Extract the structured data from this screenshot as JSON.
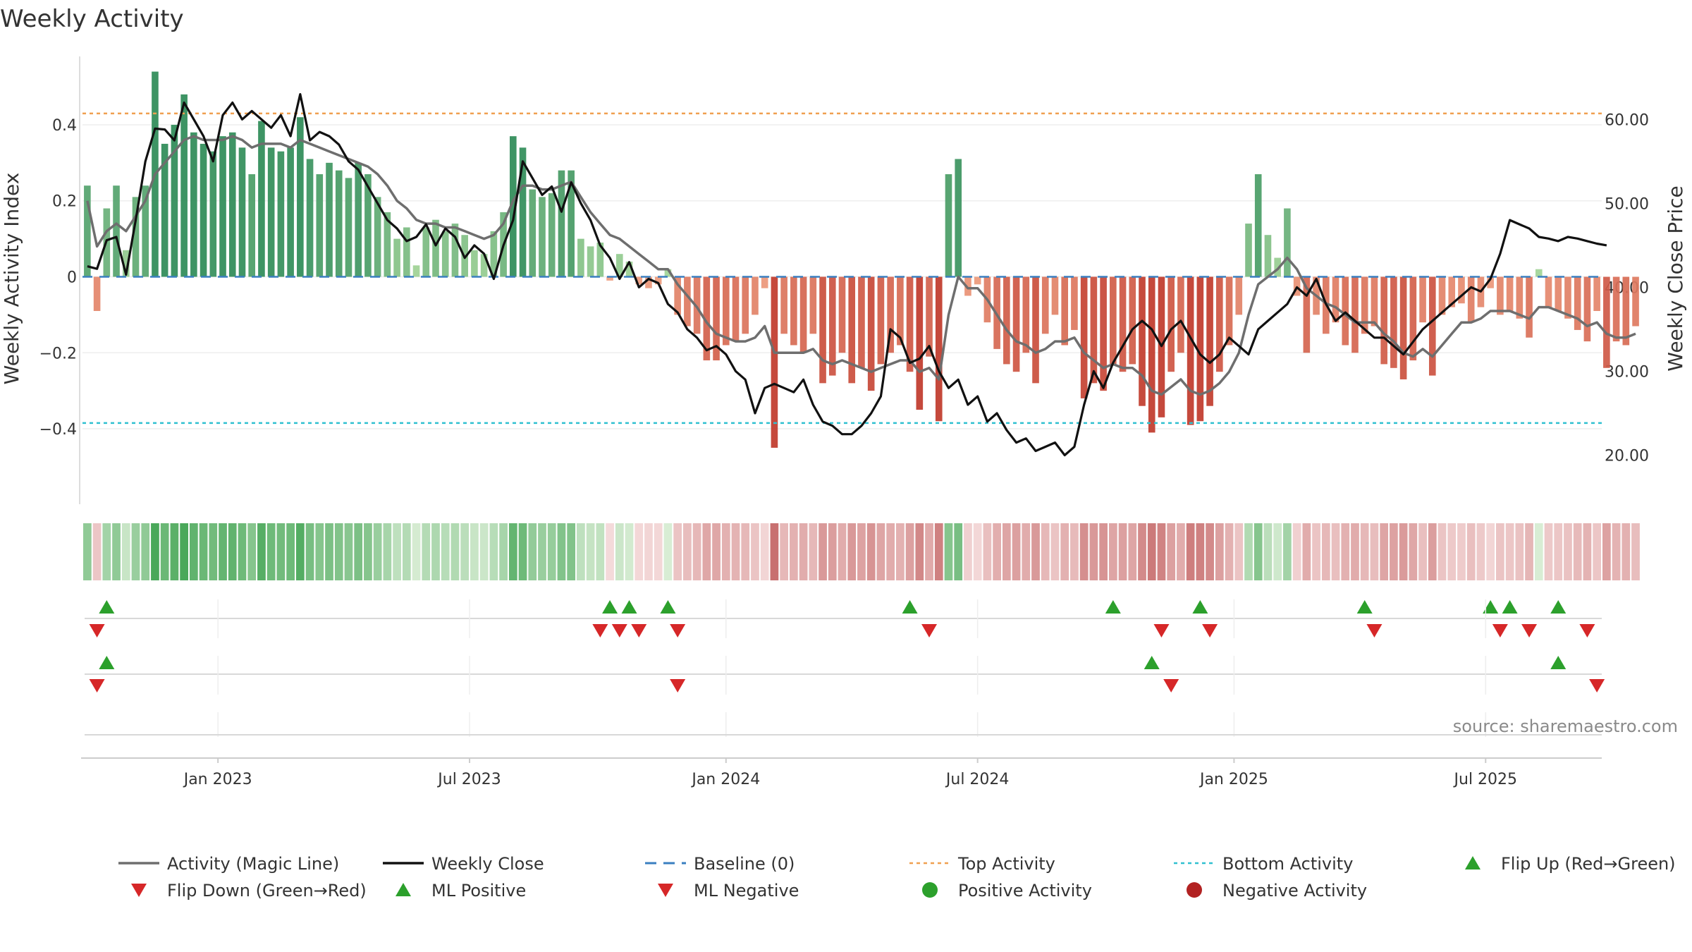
{
  "chart_data": {
    "type": "bar",
    "title": "Weekly Activity",
    "ylabel_left": "Weekly Activity Index",
    "ylabel_right": "Weekly Close Price",
    "source": "source: sharemaestro.com",
    "ylim_left": [
      -0.58,
      0.58
    ],
    "ylim_right": [
      15.0,
      67.5
    ],
    "yticks_left": [
      {
        "value": 0.4,
        "label": "0.4"
      },
      {
        "value": 0.2,
        "label": "0.2"
      },
      {
        "value": 0,
        "label": "0"
      },
      {
        "value": -0.2,
        "label": "−0.2"
      },
      {
        "value": -0.4,
        "label": "−0.4"
      }
    ],
    "yticks_right": [
      {
        "value": 60,
        "label": "60.00"
      },
      {
        "value": 50,
        "label": "50.00"
      },
      {
        "value": 40,
        "label": "40.00"
      },
      {
        "value": 30,
        "label": "30.00"
      },
      {
        "value": 20,
        "label": "20.00"
      }
    ],
    "x_range_weeks": [
      0,
      157
    ],
    "x_ticks": [
      {
        "week": 14,
        "label": "Jan 2023"
      },
      {
        "week": 40,
        "label": "Jul 2023"
      },
      {
        "week": 66.5,
        "label": "Jan 2024"
      },
      {
        "week": 92.5,
        "label": "Jul 2024"
      },
      {
        "week": 119,
        "label": "Jan 2025"
      },
      {
        "week": 145,
        "label": "Jul 2025"
      }
    ],
    "top_activity": 0.43,
    "bottom_activity": -0.385,
    "activity": [
      0.24,
      -0.09,
      0.18,
      0.24,
      0.07,
      0.21,
      0.24,
      0.54,
      0.35,
      0.4,
      0.48,
      0.38,
      0.35,
      0.33,
      0.37,
      0.38,
      0.34,
      0.27,
      0.41,
      0.34,
      0.33,
      0.34,
      0.42,
      0.31,
      0.27,
      0.3,
      0.28,
      0.26,
      0.3,
      0.27,
      0.21,
      0.17,
      0.1,
      0.13,
      0.03,
      0.13,
      0.15,
      0.12,
      0.14,
      0.11,
      0.07,
      0.06,
      0.12,
      0.17,
      0.37,
      0.34,
      0.23,
      0.21,
      0.22,
      0.28,
      0.28,
      0.1,
      0.08,
      0.09,
      -0.01,
      0.06,
      0.04,
      -0.02,
      -0.03,
      -0.02,
      0.02,
      -0.1,
      -0.13,
      -0.15,
      -0.22,
      -0.22,
      -0.18,
      -0.17,
      -0.15,
      -0.1,
      -0.03,
      -0.45,
      -0.15,
      -0.18,
      -0.2,
      -0.15,
      -0.28,
      -0.26,
      -0.2,
      -0.28,
      -0.24,
      -0.3,
      -0.23,
      -0.2,
      -0.18,
      -0.25,
      -0.35,
      -0.21,
      -0.38,
      0.27,
      0.31,
      -0.05,
      -0.02,
      -0.12,
      -0.19,
      -0.23,
      -0.25,
      -0.2,
      -0.28,
      -0.15,
      -0.1,
      -0.18,
      -0.14,
      -0.32,
      -0.28,
      -0.3,
      -0.23,
      -0.25,
      -0.23,
      -0.34,
      -0.41,
      -0.37,
      -0.25,
      -0.2,
      -0.39,
      -0.38,
      -0.34,
      -0.25,
      -0.18,
      -0.1,
      0.14,
      0.27,
      0.11,
      0.05,
      0.18,
      -0.05,
      -0.2,
      -0.1,
      -0.15,
      -0.12,
      -0.18,
      -0.2,
      -0.15,
      -0.13,
      -0.23,
      -0.24,
      -0.27,
      -0.22,
      -0.12,
      -0.26,
      -0.1,
      -0.08,
      -0.07,
      -0.12,
      -0.08,
      -0.03,
      -0.1,
      -0.09,
      -0.11,
      -0.16,
      0.02,
      -0.08,
      -0.09,
      -0.11,
      -0.14,
      -0.17,
      -0.09,
      -0.24,
      -0.17,
      -0.18,
      -0.13
    ],
    "magic_line": [
      0.2,
      0.08,
      0.12,
      0.14,
      0.12,
      0.16,
      0.2,
      0.27,
      0.3,
      0.33,
      0.36,
      0.37,
      0.36,
      0.36,
      0.36,
      0.37,
      0.36,
      0.34,
      0.35,
      0.35,
      0.35,
      0.34,
      0.36,
      0.35,
      0.34,
      0.33,
      0.32,
      0.31,
      0.3,
      0.29,
      0.27,
      0.24,
      0.2,
      0.18,
      0.15,
      0.14,
      0.14,
      0.13,
      0.13,
      0.12,
      0.11,
      0.1,
      0.11,
      0.14,
      0.2,
      0.24,
      0.24,
      0.23,
      0.23,
      0.24,
      0.25,
      0.21,
      0.17,
      0.14,
      0.11,
      0.1,
      0.08,
      0.06,
      0.04,
      0.02,
      0.02,
      -0.02,
      -0.05,
      -0.08,
      -0.12,
      -0.15,
      -0.16,
      -0.17,
      -0.17,
      -0.16,
      -0.13,
      -0.2,
      -0.2,
      -0.2,
      -0.2,
      -0.19,
      -0.22,
      -0.23,
      -0.22,
      -0.23,
      -0.24,
      -0.25,
      -0.24,
      -0.23,
      -0.22,
      -0.22,
      -0.25,
      -0.24,
      -0.27,
      -0.1,
      0.0,
      -0.03,
      -0.03,
      -0.06,
      -0.1,
      -0.14,
      -0.17,
      -0.18,
      -0.2,
      -0.19,
      -0.17,
      -0.17,
      -0.16,
      -0.2,
      -0.22,
      -0.24,
      -0.23,
      -0.24,
      -0.24,
      -0.26,
      -0.3,
      -0.31,
      -0.29,
      -0.27,
      -0.3,
      -0.31,
      -0.3,
      -0.28,
      -0.25,
      -0.2,
      -0.1,
      -0.02,
      0.0,
      0.02,
      0.05,
      0.02,
      -0.03,
      -0.05,
      -0.07,
      -0.08,
      -0.1,
      -0.12,
      -0.12,
      -0.12,
      -0.15,
      -0.17,
      -0.2,
      -0.21,
      -0.19,
      -0.21,
      -0.18,
      -0.15,
      -0.12,
      -0.12,
      -0.11,
      -0.09,
      -0.09,
      -0.09,
      -0.1,
      -0.11,
      -0.08,
      -0.08,
      -0.09,
      -0.1,
      -0.11,
      -0.13,
      -0.12,
      -0.15,
      -0.16,
      -0.16,
      -0.15
    ],
    "weekly_close": [
      42.5,
      42.2,
      45.6,
      46.0,
      41.5,
      48.0,
      55.0,
      58.9,
      58.8,
      57.5,
      62.0,
      60.0,
      58.0,
      55.0,
      60.5,
      62.0,
      60.0,
      61.0,
      60.0,
      59.0,
      60.5,
      58.0,
      63.0,
      57.5,
      58.5,
      58.0,
      57.0,
      55.0,
      54.0,
      52.0,
      50.0,
      48.0,
      47.0,
      45.5,
      46.0,
      47.5,
      45.0,
      47.0,
      46.0,
      43.5,
      45.0,
      44.0,
      41.0,
      45.0,
      48.0,
      55.0,
      53.0,
      51.0,
      52.0,
      49.0,
      52.5,
      50.0,
      48.0,
      45.0,
      43.5,
      41.0,
      43.0,
      40.0,
      41.0,
      40.5,
      38.0,
      37.0,
      35.0,
      34.0,
      32.5,
      33.0,
      32.0,
      30.0,
      29.0,
      25.0,
      28.0,
      28.5,
      28.0,
      27.5,
      29.0,
      26.0,
      24.0,
      23.5,
      22.5,
      22.5,
      23.5,
      25.0,
      27.0,
      35.0,
      34.0,
      31.0,
      31.5,
      33.0,
      30.0,
      28.0,
      29.0,
      26.0,
      27.0,
      24.0,
      25.0,
      23.0,
      21.5,
      22.0,
      20.5,
      21.0,
      21.5,
      20.0,
      21.0,
      26.0,
      30.0,
      28.0,
      31.0,
      33.0,
      35.0,
      36.0,
      35.0,
      33.0,
      35.0,
      36.0,
      34.0,
      32.0,
      31.0,
      32.0,
      34.0,
      33.0,
      32.0,
      35.0,
      36.0,
      37.0,
      38.0,
      40.0,
      39.0,
      41.0,
      38.0,
      36.0,
      37.0,
      36.0,
      35.0,
      34.0,
      34.0,
      33.0,
      32.0,
      33.5,
      35.0,
      36.0,
      37.0,
      38.0,
      39.0,
      40.0,
      39.5,
      41.0,
      44.0,
      48.0,
      47.5,
      47.0,
      46.0,
      45.8,
      45.5,
      46.0,
      45.8,
      45.5,
      45.2,
      45.0
    ],
    "flip_up_row1": [
      2,
      54,
      56,
      60,
      85,
      106,
      115,
      132,
      145,
      147,
      152
    ],
    "flip_down_row1": [
      1,
      53,
      55,
      57,
      61,
      87,
      111,
      116,
      133,
      146,
      149,
      155
    ],
    "ml_positive_row2": [
      2,
      110,
      152
    ],
    "ml_negative_row2": [
      1,
      61,
      112,
      156
    ],
    "legend": [
      {
        "label": "Activity (Magic Line)",
        "symbol": "line",
        "color": "#6e6e6e"
      },
      {
        "label": "Weekly Close",
        "symbol": "line",
        "color": "#111111"
      },
      {
        "label": "Baseline (0)",
        "symbol": "dash",
        "color": "#3a7fc0"
      },
      {
        "label": "Top Activity",
        "symbol": "dot",
        "color": "#f0a050"
      },
      {
        "label": "Bottom Activity",
        "symbol": "dot",
        "color": "#30c0d0"
      },
      {
        "label": "Flip Up (Red→Green)",
        "symbol": "tri-up",
        "color": "#2ca02c"
      },
      {
        "label": "Flip Down (Green→Red)",
        "symbol": "tri-down",
        "color": "#d62728"
      },
      {
        "label": "ML Positive",
        "symbol": "tri-up",
        "color": "#2ca02c"
      },
      {
        "label": "ML Negative",
        "symbol": "tri-down",
        "color": "#d62728"
      },
      {
        "label": "Positive Activity",
        "symbol": "circle",
        "color": "#2ca02c"
      },
      {
        "label": "Negative Activity",
        "symbol": "circle",
        "color": "#b22222"
      }
    ]
  }
}
